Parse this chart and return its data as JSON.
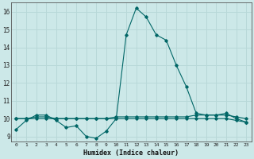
{
  "title": "",
  "xlabel": "Humidex (Indice chaleur)",
  "ylabel": "",
  "background_color": "#cce8e8",
  "line_color": "#006666",
  "grid_major_color": "#b8d8d8",
  "grid_minor_color": "#cce0e0",
  "xlim": [
    -0.5,
    23.5
  ],
  "ylim": [
    8.7,
    16.5
  ],
  "yticks": [
    9,
    10,
    11,
    12,
    13,
    14,
    15,
    16
  ],
  "xticks": [
    0,
    1,
    2,
    3,
    4,
    5,
    6,
    7,
    8,
    9,
    10,
    11,
    12,
    13,
    14,
    15,
    16,
    17,
    18,
    19,
    20,
    21,
    22,
    23
  ],
  "series1_x": [
    0,
    1,
    2,
    3,
    4,
    5,
    6,
    7,
    8,
    9,
    10,
    11,
    12,
    13,
    14,
    15,
    16,
    17,
    18,
    19,
    20,
    21,
    22,
    23
  ],
  "series1_y": [
    9.4,
    9.9,
    10.2,
    10.2,
    9.9,
    9.5,
    9.6,
    9.0,
    8.9,
    9.3,
    10.0,
    14.7,
    16.2,
    15.7,
    14.7,
    14.4,
    13.0,
    11.8,
    10.3,
    10.2,
    10.2,
    10.3,
    10.0,
    9.8
  ],
  "series2_x": [
    0,
    1,
    2,
    3,
    4,
    5,
    6,
    7,
    8,
    9,
    10,
    11,
    12,
    13,
    14,
    15,
    16,
    17,
    18,
    19,
    20,
    21,
    22,
    23
  ],
  "series2_y": [
    10.0,
    10.0,
    10.0,
    10.0,
    10.0,
    10.0,
    10.0,
    10.0,
    10.0,
    10.0,
    10.0,
    10.0,
    10.0,
    10.0,
    10.0,
    10.0,
    10.0,
    10.0,
    10.0,
    10.0,
    10.0,
    10.0,
    9.9,
    9.8
  ],
  "series3_x": [
    0,
    1,
    2,
    3,
    4,
    5,
    6,
    7,
    8,
    9,
    10,
    11,
    12,
    13,
    14,
    15,
    16,
    17,
    18,
    19,
    20,
    21,
    22,
    23
  ],
  "series3_y": [
    10.0,
    10.0,
    10.1,
    10.1,
    10.0,
    10.0,
    10.0,
    10.0,
    10.0,
    10.0,
    10.1,
    10.1,
    10.1,
    10.1,
    10.1,
    10.1,
    10.1,
    10.1,
    10.2,
    10.2,
    10.2,
    10.2,
    10.1,
    10.0
  ]
}
